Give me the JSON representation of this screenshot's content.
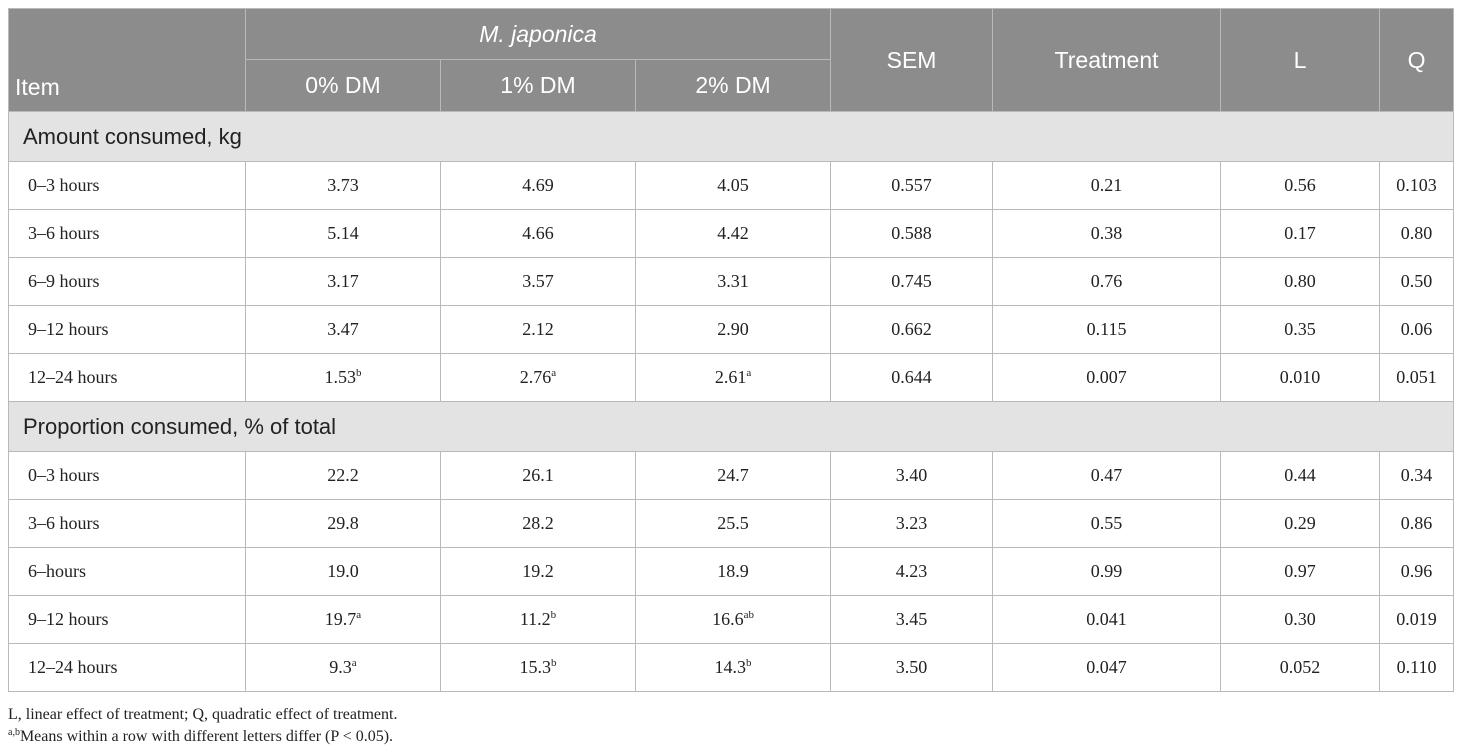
{
  "header": {
    "item": "Item",
    "group": "M. japonica",
    "levels": [
      "0% DM",
      "1% DM",
      "2% DM"
    ],
    "sem": "SEM",
    "treatment": "Treatment",
    "l": "L",
    "q": "Q"
  },
  "sections": [
    {
      "title": "Amount consumed, kg",
      "rows": [
        {
          "label": "0–3 hours",
          "c0": "3.73",
          "c0s": "",
          "c1": "4.69",
          "c1s": "",
          "c2": "4.05",
          "c2s": "",
          "sem": "0.557",
          "treatment": "0.21",
          "l": "0.56",
          "q": "0.103"
        },
        {
          "label": "3–6 hours",
          "c0": "5.14",
          "c0s": "",
          "c1": "4.66",
          "c1s": "",
          "c2": "4.42",
          "c2s": "",
          "sem": "0.588",
          "treatment": "0.38",
          "l": "0.17",
          "q": "0.80"
        },
        {
          "label": "6–9 hours",
          "c0": "3.17",
          "c0s": "",
          "c1": "3.57",
          "c1s": "",
          "c2": "3.31",
          "c2s": "",
          "sem": "0.745",
          "treatment": "0.76",
          "l": "0.80",
          "q": "0.50"
        },
        {
          "label": "9–12 hours",
          "c0": "3.47",
          "c0s": "",
          "c1": "2.12",
          "c1s": "",
          "c2": "2.90",
          "c2s": "",
          "sem": "0.662",
          "treatment": "0.115",
          "l": "0.35",
          "q": "0.06"
        },
        {
          "label": "12–24 hours",
          "c0": "1.53",
          "c0s": "b",
          "c1": "2.76",
          "c1s": "a",
          "c2": "2.61",
          "c2s": "a",
          "sem": "0.644",
          "treatment": "0.007",
          "l": "0.010",
          "q": "0.051"
        }
      ]
    },
    {
      "title": "Proportion consumed, % of total",
      "rows": [
        {
          "label": "0–3 hours",
          "c0": "22.2",
          "c0s": "",
          "c1": "26.1",
          "c1s": "",
          "c2": "24.7",
          "c2s": "",
          "sem": "3.40",
          "treatment": "0.47",
          "l": "0.44",
          "q": "0.34"
        },
        {
          "label": "3–6 hours",
          "c0": "29.8",
          "c0s": "",
          "c1": "28.2",
          "c1s": "",
          "c2": "25.5",
          "c2s": "",
          "sem": "3.23",
          "treatment": "0.55",
          "l": "0.29",
          "q": "0.86"
        },
        {
          "label": "6–hours",
          "c0": "19.0",
          "c0s": "",
          "c1": "19.2",
          "c1s": "",
          "c2": "18.9",
          "c2s": "",
          "sem": "4.23",
          "treatment": "0.99",
          "l": "0.97",
          "q": "0.96"
        },
        {
          "label": "9–12 hours",
          "c0": "19.7",
          "c0s": "a",
          "c1": "11.2",
          "c1s": "b",
          "c2": "16.6",
          "c2s": "ab",
          "sem": "3.45",
          "treatment": "0.041",
          "l": "0.30",
          "q": "0.019"
        },
        {
          "label": "12–24 hours",
          "c0": "9.3",
          "c0s": "a",
          "c1": "15.3",
          "c1s": "b",
          "c2": "14.3",
          "c2s": "b",
          "sem": "3.50",
          "treatment": "0.047",
          "l": "0.052",
          "q": "0.110"
        }
      ]
    }
  ],
  "notes": {
    "line1": "L, linear effect of treatment; Q, quadratic effect of treatment.",
    "line2_sup": "a,b",
    "line2": "Means within a row with different letters differ (P < 0.05)."
  }
}
